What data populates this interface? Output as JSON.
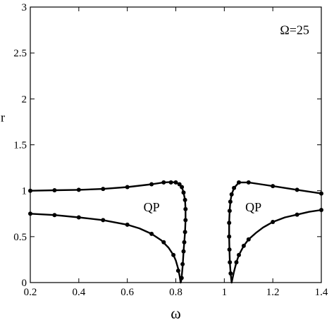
{
  "chart_data": {
    "type": "line",
    "title": "",
    "xlabel": "ω",
    "ylabel": "r",
    "xlim": [
      0.2,
      1.4
    ],
    "ylim": [
      0,
      3
    ],
    "x_ticks": [
      0.2,
      0.4,
      0.6,
      0.8,
      1.0,
      1.2,
      1.4
    ],
    "x_tick_labels": [
      "0.2",
      "0.4",
      "0.6",
      "0.8",
      "1",
      "1.2",
      "1.4"
    ],
    "y_ticks": [
      0,
      0.5,
      1,
      1.5,
      2,
      2.5,
      3
    ],
    "y_tick_labels": [
      "0",
      "0.5",
      "1",
      "1.5",
      "2",
      "2.5",
      "3"
    ],
    "grid": false,
    "annotations": [
      {
        "text": "Ω=25",
        "x": 1.29,
        "y": 2.75
      },
      {
        "text": "QP",
        "x": 0.7,
        "y": 0.82
      },
      {
        "text": "QP",
        "x": 1.12,
        "y": 0.82
      }
    ],
    "series": [
      {
        "style": "line",
        "x": [
          0.2,
          0.3,
          0.4,
          0.5,
          0.6,
          0.7,
          0.75,
          0.78,
          0.8,
          0.815,
          0.825,
          0.832,
          0.838,
          0.84,
          0.84,
          0.838,
          0.835,
          0.832,
          0.83,
          0.828,
          0.826,
          0.824,
          0.822,
          0.82
        ],
        "y": [
          1.0,
          1.005,
          1.01,
          1.02,
          1.04,
          1.07,
          1.09,
          1.095,
          1.09,
          1.07,
          1.04,
          0.98,
          0.9,
          0.8,
          0.68,
          0.55,
          0.44,
          0.34,
          0.25,
          0.17,
          0.11,
          0.06,
          0.02,
          0.0
        ]
      },
      {
        "style": "line",
        "x": [
          0.2,
          0.3,
          0.4,
          0.5,
          0.6,
          0.65,
          0.7,
          0.74,
          0.77,
          0.79,
          0.8,
          0.81,
          0.815,
          0.82
        ],
        "y": [
          0.75,
          0.735,
          0.71,
          0.68,
          0.63,
          0.59,
          0.53,
          0.46,
          0.38,
          0.3,
          0.24,
          0.15,
          0.08,
          0.0
        ]
      },
      {
        "style": "line",
        "x": [
          1.03,
          1.026,
          1.023,
          1.021,
          1.02,
          1.02,
          1.022,
          1.025,
          1.03,
          1.04,
          1.06,
          1.1,
          1.15,
          1.2,
          1.3,
          1.4
        ],
        "y": [
          0.0,
          0.1,
          0.22,
          0.36,
          0.5,
          0.65,
          0.78,
          0.88,
          0.96,
          1.03,
          1.09,
          1.09,
          1.07,
          1.05,
          1.01,
          0.97
        ]
      },
      {
        "style": "line",
        "x": [
          1.03,
          1.04,
          1.05,
          1.06,
          1.08,
          1.1,
          1.13,
          1.16,
          1.2,
          1.25,
          1.3,
          1.35,
          1.4
        ],
        "y": [
          0.0,
          0.12,
          0.22,
          0.3,
          0.4,
          0.47,
          0.54,
          0.6,
          0.66,
          0.71,
          0.74,
          0.77,
          0.79
        ]
      },
      {
        "style": "markers",
        "x": [
          0.2,
          0.3,
          0.4,
          0.5,
          0.6,
          0.7,
          0.75,
          0.78,
          0.8,
          0.815,
          0.825,
          0.832,
          0.838,
          0.84,
          0.84,
          0.838,
          0.835,
          0.832,
          0.828,
          0.824
        ],
        "y": [
          1.0,
          1.005,
          1.01,
          1.02,
          1.04,
          1.07,
          1.09,
          1.09,
          1.09,
          1.07,
          1.04,
          0.98,
          0.9,
          0.8,
          0.68,
          0.55,
          0.44,
          0.34,
          0.2,
          0.05
        ]
      },
      {
        "style": "markers",
        "x": [
          0.2,
          0.3,
          0.4,
          0.5,
          0.6,
          0.7,
          0.75,
          0.79,
          0.81
        ],
        "y": [
          0.75,
          0.735,
          0.71,
          0.68,
          0.63,
          0.53,
          0.44,
          0.3,
          0.13
        ]
      },
      {
        "style": "markers",
        "x": [
          1.026,
          1.023,
          1.021,
          1.02,
          1.02,
          1.022,
          1.025,
          1.03,
          1.04,
          1.06,
          1.1,
          1.2,
          1.3,
          1.4
        ],
        "y": [
          0.1,
          0.22,
          0.36,
          0.5,
          0.65,
          0.78,
          0.88,
          0.96,
          1.03,
          1.09,
          1.09,
          1.05,
          1.01,
          0.97
        ]
      },
      {
        "style": "markers",
        "x": [
          1.05,
          1.06,
          1.08,
          1.1,
          1.2,
          1.3,
          1.4
        ],
        "y": [
          0.22,
          0.3,
          0.4,
          0.47,
          0.66,
          0.74,
          0.79
        ]
      }
    ]
  }
}
